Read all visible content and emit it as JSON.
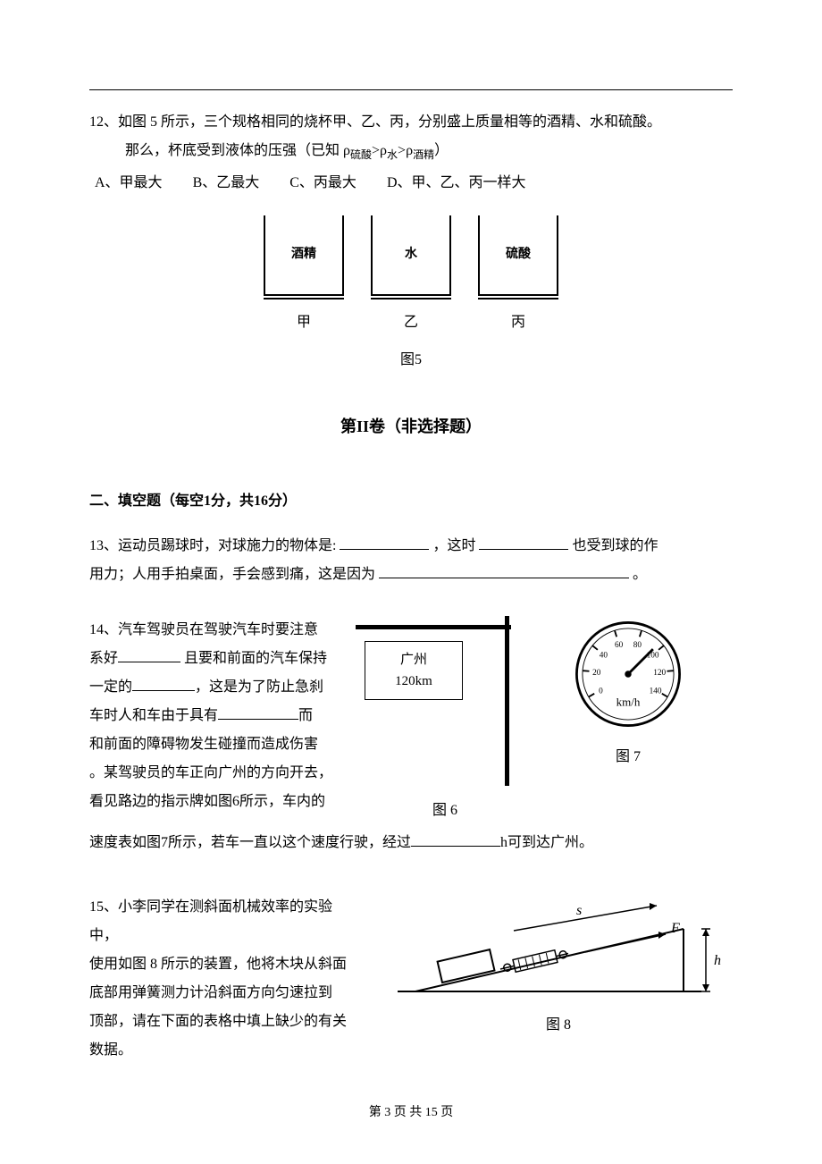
{
  "q12": {
    "line1": "12、如图 5 所示，三个规格相同的烧杯甲、乙、丙，分别盛上质量相等的酒精、水和硫酸。",
    "line2_prefix": "那么，杯底受到液体的压强（已知 ρ",
    "sub1": "硫酸",
    "gt1": ">ρ",
    "sub2": "水",
    "gt2": ">ρ",
    "sub3": "酒精",
    "line2_suffix": "）",
    "options": {
      "a": "A、甲最大",
      "b": "B、乙最大",
      "c": "C、丙最大",
      "d": "D、甲、乙、丙一样大"
    },
    "beakers": {
      "a": {
        "content": "酒精",
        "label": "甲"
      },
      "b": {
        "content": "水",
        "label": "乙"
      },
      "c": {
        "content": "硫酸",
        "label": "丙"
      }
    },
    "caption": "图5"
  },
  "section2_header": "第II卷（非选择题）",
  "section2_sub": "二、填空题（每空1分，共16分）",
  "q13": {
    "prefix": "13、运动员踢球时，对球施力的物体是:",
    "mid1": "，这时",
    "mid2": "也受到球的作",
    "line2_prefix": "用力；人用手拍桌面，手会感到痛，这是因为",
    "line2_suffix": "。"
  },
  "q14": {
    "l1": "14、汽车驾驶员在驾驶汽车时要注意",
    "l2a": "系好",
    "l2b": " 且要和前面的汽车保持",
    "l3a": "一定的",
    "l3b": "，这是为了防止急刹",
    "l4a": "车时人和车由于具有",
    "l4b": "而",
    "l5": "和前面的障碍物发生碰撞而造成伤害",
    "l6": "。某驾驶员的车正向广州的方向开去，",
    "l7": "看见路边的指示牌如图6所示，车内的",
    "sign_city": "广州",
    "sign_dist": "120km",
    "fig6_caption": "图 6",
    "fig7_caption": "图 7",
    "speedometer": {
      "ticks": [
        0,
        20,
        40,
        60,
        80,
        100,
        120,
        140
      ],
      "unit": "km/h"
    },
    "final_a": "速度表如图7所示，若车一直以这个速度行驶，经过",
    "final_b": "h可到达广州。"
  },
  "q15": {
    "l1": "15、小李同学在测斜面机械效率的实验中，",
    "l2": "使用如图 8 所示的装置，他将木块从斜面",
    "l3": "底部用弹簧测力计沿斜面方向匀速拉到",
    "l4": "顶部，请在下面的表格中填上缺少的有关",
    "l5": "数据。",
    "caption": "图 8",
    "labels": {
      "s": "s",
      "F": "F",
      "h": "h"
    }
  },
  "footer": {
    "pre": "第 ",
    "page": "3",
    "mid": " 页 共 ",
    "total": "15",
    "suf": " 页"
  },
  "colors": {
    "text": "#000000",
    "bg": "#ffffff"
  }
}
